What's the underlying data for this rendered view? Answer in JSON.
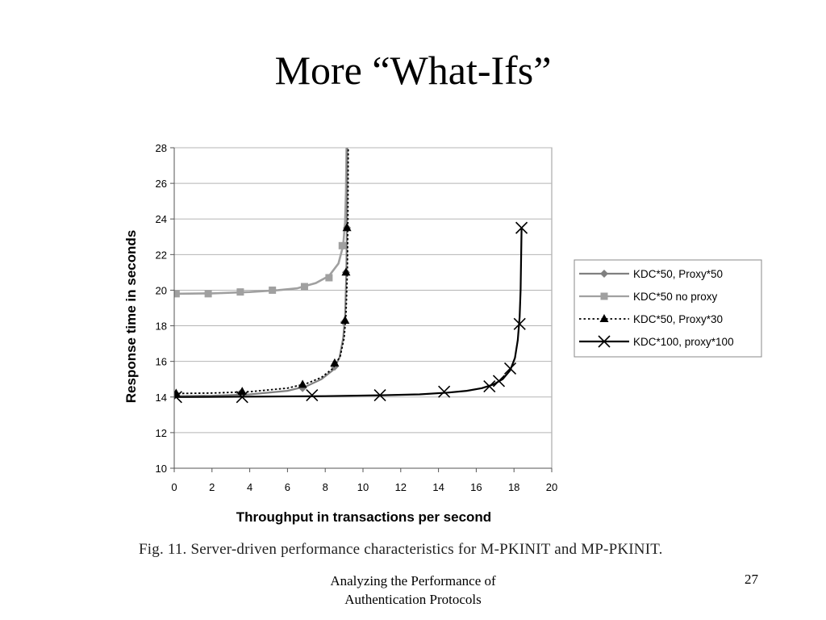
{
  "slide": {
    "title": "More “What-Ifs”",
    "figure_caption": "Fig. 11.   Server-driven performance characteristics for M-PKINIT and MP-PKINIT.",
    "footer_line1": "Analyzing the Performance of",
    "footer_line2": "Authentication Protocols",
    "page_number": "27"
  },
  "chart_data": {
    "type": "line",
    "title": "",
    "xlabel": "Throughput in transactions per second",
    "ylabel": "Response time in seconds",
    "xlim": [
      0,
      20
    ],
    "ylim": [
      10,
      28
    ],
    "x_ticks": [
      "0",
      "2",
      "4",
      "6",
      "8",
      "10",
      "12",
      "14",
      "16",
      "18",
      "20"
    ],
    "y_ticks": [
      "10",
      "12",
      "14",
      "16",
      "18",
      "20",
      "22",
      "24",
      "26",
      "28"
    ],
    "grid": "horizontal",
    "legend_position": "right",
    "series": [
      {
        "name": "KDC*50, Proxy*50",
        "color": "#808080",
        "marker": "diamond",
        "line": "solid",
        "curve": [
          [
            0,
            14.05
          ],
          [
            2,
            14.07
          ],
          [
            4,
            14.15
          ],
          [
            6,
            14.35
          ],
          [
            7,
            14.6
          ],
          [
            7.8,
            15.0
          ],
          [
            8.4,
            15.5
          ],
          [
            8.75,
            16.2
          ],
          [
            8.95,
            17.3
          ],
          [
            9.05,
            18.5
          ],
          [
            9.12,
            21
          ],
          [
            9.15,
            24
          ],
          [
            9.17,
            28
          ]
        ],
        "markers": [
          [
            0,
            14.1
          ],
          [
            3.5,
            14.2
          ],
          [
            6.8,
            14.5
          ],
          [
            8.5,
            15.7
          ],
          [
            9.0,
            18.2
          ],
          [
            9.1,
            21.0
          ],
          [
            9.15,
            23.5
          ]
        ]
      },
      {
        "name": "KDC*50 no proxy",
        "color": "#a0a0a0",
        "marker": "square",
        "line": "solid",
        "curve": [
          [
            0,
            19.8
          ],
          [
            2,
            19.82
          ],
          [
            4,
            19.9
          ],
          [
            5.5,
            20.0
          ],
          [
            6.5,
            20.1
          ],
          [
            7.5,
            20.4
          ],
          [
            8.2,
            20.8
          ],
          [
            8.7,
            21.5
          ],
          [
            8.95,
            22.5
          ],
          [
            9.05,
            23.8
          ],
          [
            9.1,
            25.5
          ],
          [
            9.13,
            28
          ]
        ],
        "markers": [
          [
            0.1,
            19.8
          ],
          [
            1.8,
            19.8
          ],
          [
            3.5,
            19.9
          ],
          [
            5.2,
            20.0
          ],
          [
            6.9,
            20.2
          ],
          [
            8.2,
            20.7
          ],
          [
            8.9,
            22.5
          ]
        ]
      },
      {
        "name": "KDC*50, Proxy*30",
        "color": "#000000",
        "marker": "triangle",
        "line": "dotted",
        "curve": [
          [
            0,
            14.2
          ],
          [
            2,
            14.22
          ],
          [
            4,
            14.3
          ],
          [
            6,
            14.5
          ],
          [
            7,
            14.75
          ],
          [
            7.8,
            15.1
          ],
          [
            8.4,
            15.6
          ],
          [
            8.8,
            16.3
          ],
          [
            9.0,
            17.3
          ],
          [
            9.1,
            18.6
          ],
          [
            9.17,
            21
          ],
          [
            9.2,
            24
          ],
          [
            9.22,
            28
          ]
        ],
        "markers": [
          [
            0.1,
            14.2
          ],
          [
            3.6,
            14.3
          ],
          [
            6.8,
            14.7
          ],
          [
            8.5,
            15.9
          ],
          [
            9.05,
            18.3
          ],
          [
            9.1,
            21.0
          ],
          [
            9.15,
            23.5
          ]
        ]
      },
      {
        "name": "KDC*100, proxy*100",
        "color": "#000000",
        "marker": "x",
        "line": "solid",
        "curve": [
          [
            0,
            14.0
          ],
          [
            4,
            14.02
          ],
          [
            8,
            14.05
          ],
          [
            11,
            14.1
          ],
          [
            13,
            14.15
          ],
          [
            14.5,
            14.25
          ],
          [
            15.5,
            14.35
          ],
          [
            16.3,
            14.5
          ],
          [
            16.9,
            14.7
          ],
          [
            17.4,
            15.0
          ],
          [
            17.8,
            15.5
          ],
          [
            18.05,
            16.2
          ],
          [
            18.2,
            17.2
          ],
          [
            18.3,
            18.5
          ],
          [
            18.35,
            20
          ],
          [
            18.38,
            22
          ],
          [
            18.4,
            23.5
          ]
        ],
        "markers": [
          [
            0.1,
            14.0
          ],
          [
            3.6,
            14.0
          ],
          [
            7.3,
            14.1
          ],
          [
            10.9,
            14.1
          ],
          [
            14.3,
            14.3
          ],
          [
            16.7,
            14.6
          ],
          [
            17.2,
            14.9
          ],
          [
            17.8,
            15.6
          ],
          [
            18.3,
            18.1
          ],
          [
            18.4,
            23.5
          ]
        ]
      }
    ]
  }
}
